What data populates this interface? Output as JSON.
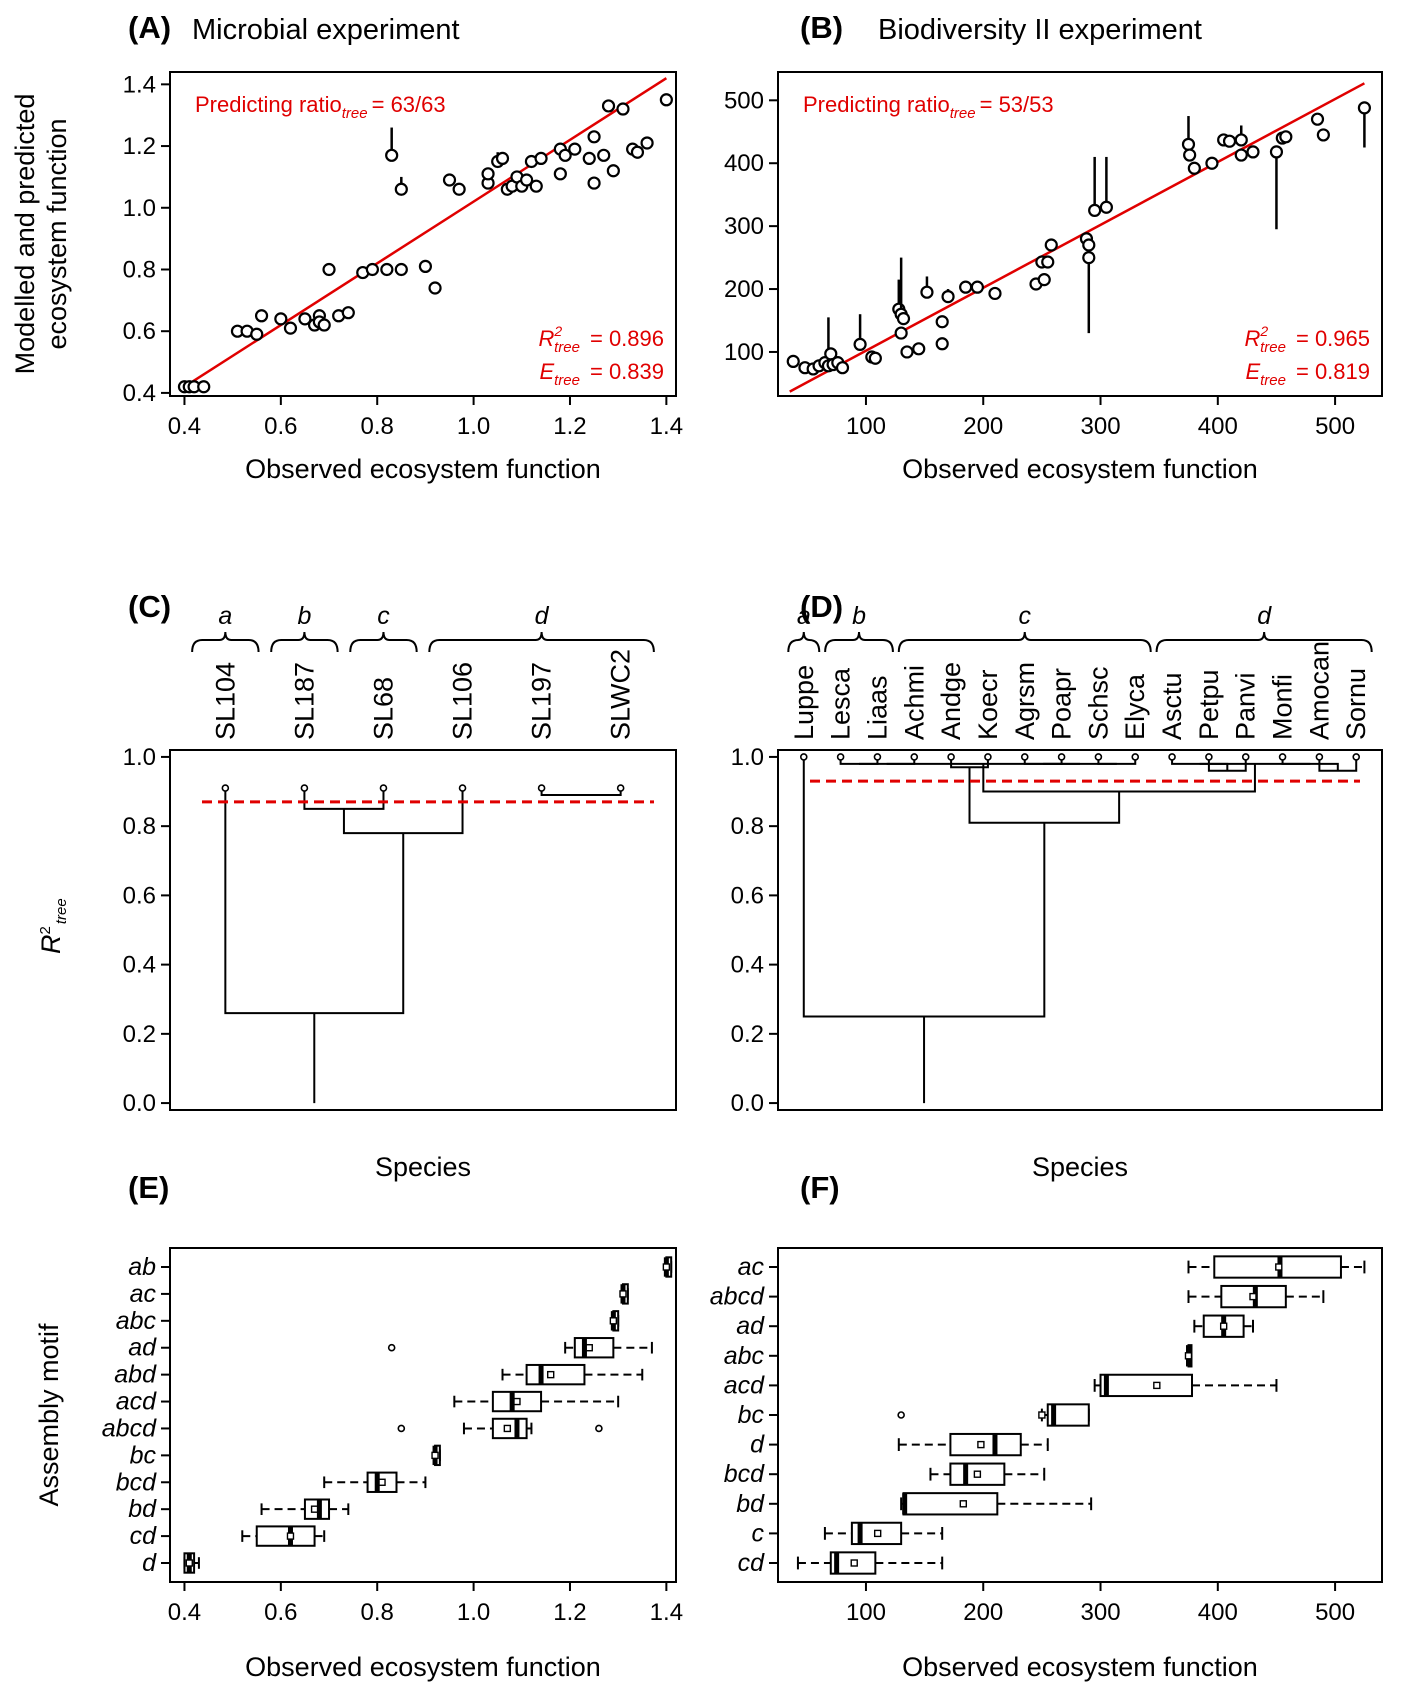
{
  "colors": {
    "fit_line": "#e00000",
    "annotation": "#e00000",
    "threshold": "#e00000",
    "blue": "#1a1aff",
    "orange": "#f08c00",
    "green": "#3c7a14",
    "red": "#ee0000"
  },
  "panels": {
    "A": {
      "letter": "(A)",
      "title": "Microbial experiment"
    },
    "B": {
      "letter": "(B)",
      "title": "Biodiversity II experiment"
    },
    "C": {
      "letter": "(C)"
    },
    "D": {
      "letter": "(D)"
    },
    "E": {
      "letter": "(E)"
    },
    "F": {
      "letter": "(F)"
    }
  },
  "chart_data": [
    {
      "panel": "A",
      "type": "scatter",
      "xlabel": "Observed ecosystem function",
      "ylabel_lines": [
        "Modelled and predicted",
        "ecosystem function"
      ],
      "xlim": [
        0.37,
        1.42
      ],
      "ylim": [
        0.39,
        1.44
      ],
      "xticks": [
        "0.4",
        "0.6",
        "0.8",
        "1.0",
        "1.2",
        "1.4"
      ],
      "yticks": [
        "0.4",
        "0.6",
        "0.8",
        "1.0",
        "1.2",
        "1.4"
      ],
      "annotation": {
        "ratio_main": "Predicting ratio",
        "ratio_sub": "tree",
        "ratio_value": "= 63/63",
        "r2_main": "R",
        "r2_sup": "2",
        "r2_sub": "tree",
        "r2_value": "= 0.896",
        "e_main": "E",
        "e_sub": "tree",
        "e_value": "= 0.839"
      },
      "fit_line": [
        [
          0.4,
          0.42
        ],
        [
          1.4,
          1.42
        ]
      ],
      "points": [
        [
          0.4,
          0.42,
          0.42
        ],
        [
          0.41,
          0.42,
          0.42
        ],
        [
          0.42,
          0.42,
          0.42
        ],
        [
          0.44,
          0.42,
          0.42
        ],
        [
          0.51,
          0.6,
          0.6
        ],
        [
          0.53,
          0.6,
          0.6
        ],
        [
          0.55,
          0.59,
          0.59
        ],
        [
          0.56,
          0.65,
          0.67
        ],
        [
          0.6,
          0.64,
          0.64
        ],
        [
          0.62,
          0.61,
          0.61
        ],
        [
          0.65,
          0.64,
          0.64
        ],
        [
          0.67,
          0.62,
          0.62
        ],
        [
          0.68,
          0.65,
          0.67
        ],
        [
          0.68,
          0.63,
          0.63
        ],
        [
          0.69,
          0.62,
          0.62
        ],
        [
          0.7,
          0.8,
          0.82
        ],
        [
          0.72,
          0.65,
          0.65
        ],
        [
          0.74,
          0.66,
          0.66
        ],
        [
          0.77,
          0.79,
          0.79
        ],
        [
          0.79,
          0.8,
          0.8
        ],
        [
          0.82,
          0.8,
          0.8
        ],
        [
          0.83,
          1.17,
          1.26
        ],
        [
          0.85,
          1.06,
          1.1
        ],
        [
          0.85,
          0.8,
          0.8
        ],
        [
          0.9,
          0.81,
          0.81
        ],
        [
          0.92,
          0.74,
          0.74
        ],
        [
          0.95,
          1.09,
          1.11
        ],
        [
          0.97,
          1.06,
          1.06
        ],
        [
          1.03,
          1.08,
          1.08
        ],
        [
          1.03,
          1.11,
          1.13
        ],
        [
          1.05,
          1.15,
          1.18
        ],
        [
          1.06,
          1.16,
          1.16
        ],
        [
          1.07,
          1.06,
          1.06
        ],
        [
          1.08,
          1.07,
          1.07
        ],
        [
          1.09,
          1.1,
          1.1
        ],
        [
          1.1,
          1.07,
          1.07
        ],
        [
          1.11,
          1.09,
          1.09
        ],
        [
          1.12,
          1.15,
          1.15
        ],
        [
          1.13,
          1.07,
          1.07
        ],
        [
          1.14,
          1.16,
          1.16
        ],
        [
          1.18,
          1.19,
          1.19
        ],
        [
          1.18,
          1.11,
          1.11
        ],
        [
          1.19,
          1.17,
          1.17
        ],
        [
          1.21,
          1.19,
          1.19
        ],
        [
          1.24,
          1.16,
          1.16
        ],
        [
          1.25,
          1.23,
          1.23
        ],
        [
          1.25,
          1.08,
          1.08
        ],
        [
          1.27,
          1.17,
          1.17
        ],
        [
          1.28,
          1.33,
          1.35
        ],
        [
          1.29,
          1.12,
          1.12
        ],
        [
          1.31,
          1.32,
          1.32
        ],
        [
          1.33,
          1.19,
          1.19
        ],
        [
          1.34,
          1.18,
          1.18
        ],
        [
          1.36,
          1.21,
          1.21
        ],
        [
          1.4,
          1.35,
          1.37
        ]
      ]
    },
    {
      "panel": "B",
      "type": "scatter",
      "xlabel": "Observed ecosystem function",
      "xlim": [
        25,
        540
      ],
      "ylim": [
        30,
        545
      ],
      "xticks": [
        "100",
        "200",
        "300",
        "400",
        "500"
      ],
      "yticks": [
        "100",
        "200",
        "300",
        "400",
        "500"
      ],
      "annotation": {
        "ratio_main": "Predicting ratio",
        "ratio_sub": "tree",
        "ratio_value": "= 53/53",
        "r2_main": "R",
        "r2_sup": "2",
        "r2_sub": "tree",
        "r2_value": "= 0.965",
        "e_main": "E",
        "e_sub": "tree",
        "e_value": "= 0.819"
      },
      "fit_line": [
        [
          35,
          37
        ],
        [
          525,
          527
        ]
      ],
      "points": [
        [
          38,
          85,
          95
        ],
        [
          48,
          75,
          75
        ],
        [
          55,
          73,
          73
        ],
        [
          60,
          78,
          78
        ],
        [
          65,
          83,
          83
        ],
        [
          68,
          78,
          155
        ],
        [
          70,
          97,
          97
        ],
        [
          72,
          80,
          80
        ],
        [
          76,
          83,
          83
        ],
        [
          80,
          75,
          75
        ],
        [
          95,
          112,
          160
        ],
        [
          105,
          92,
          92
        ],
        [
          108,
          90,
          90
        ],
        [
          128,
          168,
          215
        ],
        [
          130,
          160,
          250
        ],
        [
          130,
          130,
          130
        ],
        [
          132,
          153,
          153
        ],
        [
          135,
          100,
          100
        ],
        [
          145,
          105,
          105
        ],
        [
          152,
          195,
          220
        ],
        [
          165,
          148,
          148
        ],
        [
          165,
          113,
          113
        ],
        [
          170,
          188,
          200
        ],
        [
          195,
          203,
          203
        ],
        [
          185,
          203,
          203
        ],
        [
          210,
          193,
          193
        ],
        [
          245,
          208,
          208
        ],
        [
          250,
          243,
          243
        ],
        [
          252,
          215,
          215
        ],
        [
          258,
          270,
          270
        ],
        [
          255,
          243,
          243
        ],
        [
          288,
          280,
          280
        ],
        [
          290,
          250,
          130
        ],
        [
          290,
          270,
          270
        ],
        [
          295,
          325,
          410
        ],
        [
          305,
          330,
          410
        ],
        [
          375,
          430,
          475
        ],
        [
          376,
          413,
          413
        ],
        [
          380,
          392,
          392
        ],
        [
          395,
          400,
          400
        ],
        [
          405,
          437,
          437
        ],
        [
          410,
          435,
          435
        ],
        [
          420,
          413,
          413
        ],
        [
          420,
          437,
          460
        ],
        [
          430,
          418,
          418
        ],
        [
          450,
          418,
          295
        ],
        [
          455,
          440,
          440
        ],
        [
          458,
          442,
          442
        ],
        [
          485,
          470,
          470
        ],
        [
          490,
          445,
          445
        ],
        [
          525,
          488,
          425
        ]
      ]
    },
    {
      "panel": "C",
      "type": "dendrogram",
      "xlabel": "Species",
      "ylabel_main": "R",
      "ylabel_sup": "2",
      "ylabel_sub": "tree",
      "ylim": [
        -0.02,
        1.02
      ],
      "yticks": [
        "0.0",
        "0.2",
        "0.4",
        "0.6",
        "0.8",
        "1.0"
      ],
      "threshold": 0.87,
      "leaves": [
        {
          "label": "SL104",
          "color": "#000000"
        },
        {
          "label": "SL187",
          "color": "#000000"
        },
        {
          "label": "SL68",
          "color": "#000000"
        },
        {
          "label": "SL106",
          "color": "#000000"
        },
        {
          "label": "SL197",
          "color": "#000000"
        },
        {
          "label": "SLWC2",
          "color": "#000000"
        }
      ],
      "groups": [
        {
          "label": "a",
          "from": 0,
          "to": 0
        },
        {
          "label": "b",
          "from": 1,
          "to": 1
        },
        {
          "label": "c",
          "from": 2,
          "to": 2
        },
        {
          "label": "d",
          "from": 3,
          "to": 5
        }
      ],
      "leaf_height": 0.91,
      "merges": [
        [
          4,
          5,
          0.89
        ],
        [
          1,
          2,
          0.85
        ],
        [
          7,
          3,
          0.78
        ],
        [
          0,
          8,
          0.26
        ]
      ]
    },
    {
      "panel": "D",
      "type": "dendrogram",
      "xlabel": "Species",
      "ylim": [
        -0.02,
        1.02
      ],
      "yticks": [
        "0.0",
        "0.2",
        "0.4",
        "0.6",
        "0.8",
        "1.0"
      ],
      "threshold": 0.93,
      "leaves": [
        {
          "label": "Luppe",
          "color": "#1a1aff"
        },
        {
          "label": "Lesca",
          "color": "#1a1aff"
        },
        {
          "label": "Liaas",
          "color": "#f08c00"
        },
        {
          "label": "Achmi",
          "color": "#f08c00"
        },
        {
          "label": "Andge",
          "color": "#3c7a14"
        },
        {
          "label": "Koecr",
          "color": "#ee0000"
        },
        {
          "label": "Agrsm",
          "color": "#ee0000"
        },
        {
          "label": "Poapr",
          "color": "#ee0000"
        },
        {
          "label": "Schsc",
          "color": "#3c7a14"
        },
        {
          "label": "Elyca",
          "color": "#ee0000"
        },
        {
          "label": "Asctu",
          "color": "#f08c00"
        },
        {
          "label": "Petpu",
          "color": "#1a1aff"
        },
        {
          "label": "Panvi",
          "color": "#3c7a14"
        },
        {
          "label": "Monfi",
          "color": "#f08c00"
        },
        {
          "label": "Amocan",
          "color": "#1a1aff"
        },
        {
          "label": "Sornu",
          "color": "#3c7a14"
        }
      ],
      "groups": [
        {
          "label": "a",
          "from": 0,
          "to": 0
        },
        {
          "label": "b",
          "from": 1,
          "to": 2
        },
        {
          "label": "c",
          "from": 3,
          "to": 9
        },
        {
          "label": "d",
          "from": 10,
          "to": 15
        }
      ],
      "leaf_height": 1.0,
      "merges": [
        [
          1,
          2,
          0.98
        ],
        [
          4,
          5,
          0.97
        ],
        [
          16,
          3,
          0.98
        ],
        [
          6,
          7,
          0.98
        ],
        [
          8,
          9,
          0.98
        ],
        [
          20,
          19,
          0.98
        ],
        [
          18,
          21,
          0.98
        ],
        [
          11,
          12,
          0.96
        ],
        [
          10,
          23,
          0.98
        ],
        [
          14,
          15,
          0.96
        ],
        [
          13,
          25,
          0.98
        ],
        [
          24,
          26,
          0.98
        ],
        [
          22,
          27,
          0.9
        ],
        [
          17,
          28,
          0.81
        ],
        [
          0,
          29,
          0.25
        ]
      ]
    },
    {
      "panel": "E",
      "type": "box",
      "xlabel": "Observed ecosystem function",
      "ylabel": "Assembly motif",
      "xlim": [
        0.37,
        1.42
      ],
      "xticks": [
        "0.4",
        "0.6",
        "0.8",
        "1.0",
        "1.2",
        "1.4"
      ],
      "boxes": [
        {
          "label": "ab",
          "min": 1.4,
          "q1": 1.4,
          "median": 1.4,
          "q3": 1.41,
          "max": 1.41,
          "mean": 1.4,
          "outliers": []
        },
        {
          "label": "ac",
          "min": 1.31,
          "q1": 1.31,
          "median": 1.31,
          "q3": 1.32,
          "max": 1.32,
          "mean": 1.31,
          "outliers": []
        },
        {
          "label": "abc",
          "min": 1.29,
          "q1": 1.29,
          "median": 1.29,
          "q3": 1.3,
          "max": 1.3,
          "mean": 1.29,
          "outliers": []
        },
        {
          "label": "ad",
          "min": 1.19,
          "q1": 1.21,
          "median": 1.23,
          "q3": 1.29,
          "max": 1.37,
          "mean": 1.24,
          "outliers": [
            0.83
          ]
        },
        {
          "label": "abd",
          "min": 1.06,
          "q1": 1.11,
          "median": 1.14,
          "q3": 1.23,
          "max": 1.35,
          "mean": 1.16,
          "outliers": []
        },
        {
          "label": "acd",
          "min": 0.96,
          "q1": 1.04,
          "median": 1.08,
          "q3": 1.14,
          "max": 1.3,
          "mean": 1.09,
          "outliers": []
        },
        {
          "label": "abcd",
          "min": 0.98,
          "q1": 1.04,
          "median": 1.09,
          "q3": 1.11,
          "max": 1.12,
          "mean": 1.07,
          "outliers": [
            0.85,
            1.26
          ]
        },
        {
          "label": "bc",
          "min": 0.92,
          "q1": 0.92,
          "median": 0.92,
          "q3": 0.93,
          "max": 0.93,
          "mean": 0.92,
          "outliers": []
        },
        {
          "label": "bcd",
          "min": 0.69,
          "q1": 0.78,
          "median": 0.8,
          "q3": 0.84,
          "max": 0.9,
          "mean": 0.81,
          "outliers": []
        },
        {
          "label": "bd",
          "min": 0.56,
          "q1": 0.65,
          "median": 0.68,
          "q3": 0.7,
          "max": 0.74,
          "mean": 0.67,
          "outliers": []
        },
        {
          "label": "cd",
          "min": 0.52,
          "q1": 0.55,
          "median": 0.62,
          "q3": 0.67,
          "max": 0.69,
          "mean": 0.62,
          "outliers": []
        },
        {
          "label": "d",
          "min": 0.4,
          "q1": 0.4,
          "median": 0.41,
          "q3": 0.42,
          "max": 0.43,
          "mean": 0.41,
          "outliers": []
        }
      ]
    },
    {
      "panel": "F",
      "type": "box",
      "xlabel": "Observed ecosystem function",
      "xlim": [
        25,
        540
      ],
      "xticks": [
        "100",
        "200",
        "300",
        "400",
        "500"
      ],
      "boxes": [
        {
          "label": "ac",
          "min": 375,
          "q1": 397,
          "median": 453,
          "q3": 505,
          "max": 525,
          "mean": 452,
          "outliers": []
        },
        {
          "label": "abcd",
          "min": 375,
          "q1": 403,
          "median": 432,
          "q3": 458,
          "max": 490,
          "mean": 430,
          "outliers": []
        },
        {
          "label": "ad",
          "min": 380,
          "q1": 388,
          "median": 405,
          "q3": 422,
          "max": 430,
          "mean": 405,
          "outliers": []
        },
        {
          "label": "abc",
          "min": 375,
          "q1": 375,
          "median": 375,
          "q3": 377,
          "max": 377,
          "mean": 375,
          "outliers": []
        },
        {
          "label": "acd",
          "min": 295,
          "q1": 300,
          "median": 305,
          "q3": 378,
          "max": 450,
          "mean": 348,
          "outliers": []
        },
        {
          "label": "bc",
          "min": 250,
          "q1": 255,
          "median": 260,
          "q3": 290,
          "max": 290,
          "mean": 250,
          "outliers": [
            130
          ]
        },
        {
          "label": "d",
          "min": 128,
          "q1": 172,
          "median": 210,
          "q3": 232,
          "max": 255,
          "mean": 198,
          "outliers": []
        },
        {
          "label": "bcd",
          "min": 155,
          "q1": 172,
          "median": 185,
          "q3": 218,
          "max": 252,
          "mean": 195,
          "outliers": []
        },
        {
          "label": "bd",
          "min": 130,
          "q1": 132,
          "median": 133,
          "q3": 212,
          "max": 292,
          "mean": 183,
          "outliers": []
        },
        {
          "label": "c",
          "min": 65,
          "q1": 88,
          "median": 95,
          "q3": 130,
          "max": 165,
          "mean": 110,
          "outliers": []
        },
        {
          "label": "cd",
          "min": 42,
          "q1": 70,
          "median": 75,
          "q3": 108,
          "max": 165,
          "mean": 90,
          "outliers": []
        }
      ]
    }
  ]
}
